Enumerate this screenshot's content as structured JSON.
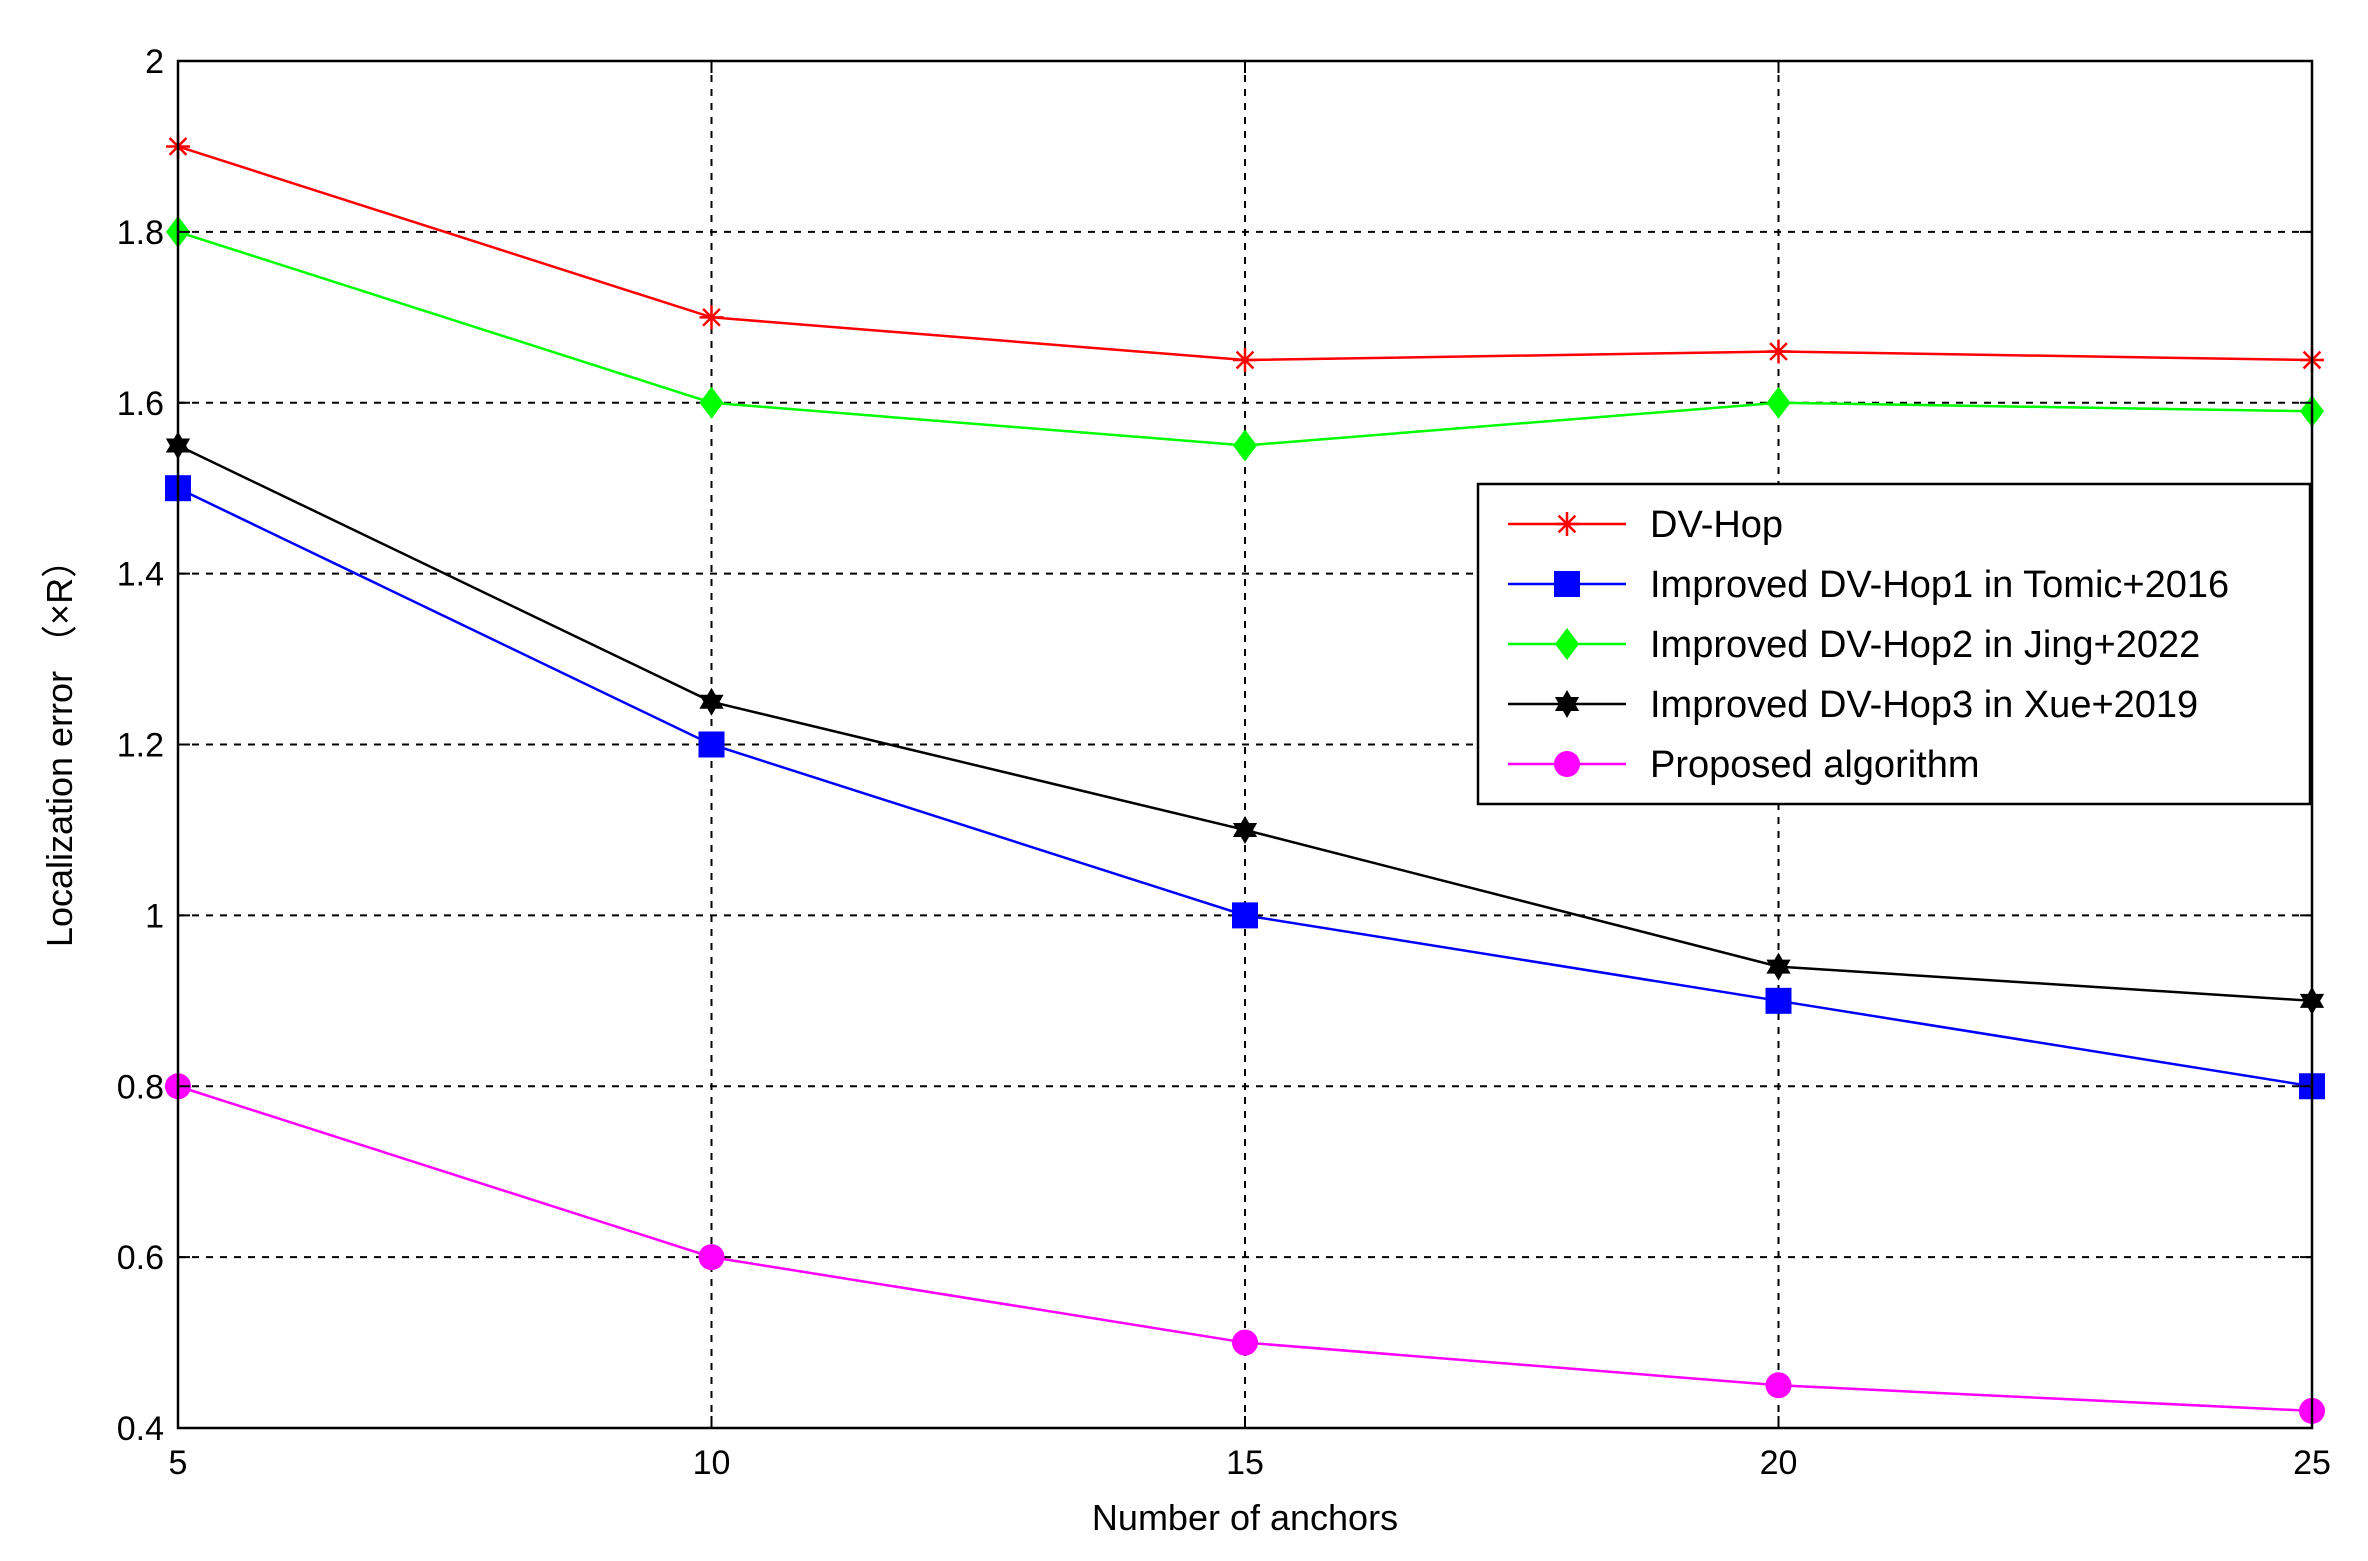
{
  "chart_data": {
    "type": "line",
    "title": "",
    "xlabel": "Number of anchors",
    "ylabel": "Localization error （×R）",
    "x": [
      5,
      10,
      15,
      20,
      25
    ],
    "xlim": [
      5,
      25
    ],
    "ylim": [
      0.4,
      2
    ],
    "xticks": [
      "5",
      "10",
      "15",
      "20",
      "25"
    ],
    "yticks": [
      "0.4",
      "0.6",
      "0.8",
      "1",
      "1.2",
      "1.4",
      "1.6",
      "1.8",
      "2"
    ],
    "grid": true,
    "legend_position": "right",
    "series": [
      {
        "name": "DV-Hop",
        "values": [
          1.9,
          1.7,
          1.65,
          1.66,
          1.65
        ],
        "color": "#ff0000",
        "marker": "asterisk"
      },
      {
        "name": "Improved DV-Hop1 in Tomic+2016",
        "values": [
          1.5,
          1.2,
          1.0,
          0.9,
          0.8
        ],
        "color": "#0000ff",
        "marker": "square"
      },
      {
        "name": "Improved DV-Hop2 in Jing+2022",
        "values": [
          1.8,
          1.6,
          1.55,
          1.6,
          1.59
        ],
        "color": "#00ff00",
        "marker": "diamond"
      },
      {
        "name": "Improved DV-Hop3 in Xue+2019",
        "values": [
          1.55,
          1.25,
          1.1,
          0.94,
          0.9
        ],
        "color": "#000000",
        "marker": "hexagram"
      },
      {
        "name": "Proposed algorithm",
        "values": [
          0.8,
          0.6,
          0.5,
          0.45,
          0.42
        ],
        "color": "#ff00ff",
        "marker": "circle"
      }
    ]
  }
}
